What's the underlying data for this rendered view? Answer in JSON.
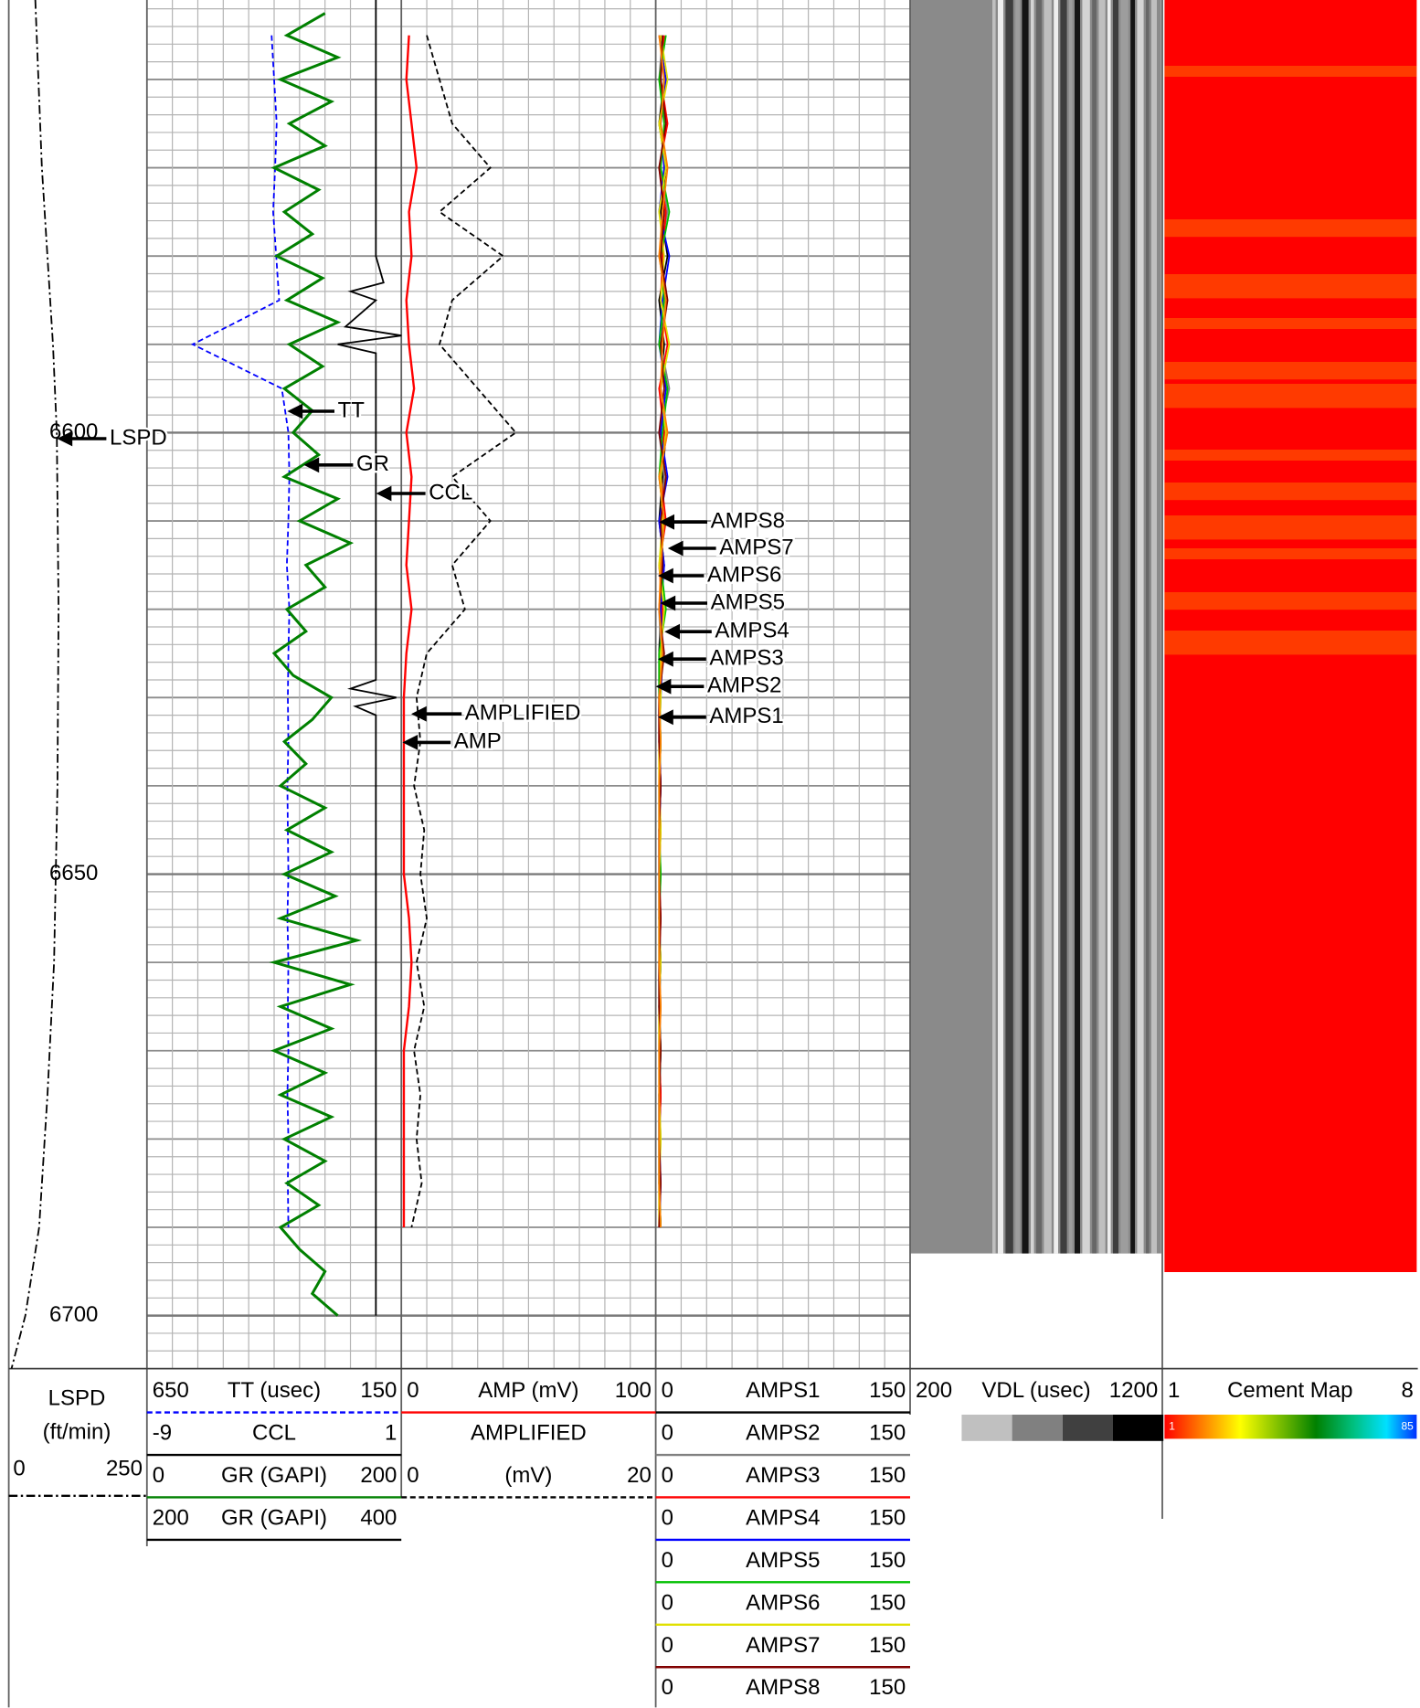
{
  "chart_data": {
    "type": "well-log",
    "ylim": [
      6551,
      6706
    ],
    "yticks": [
      6600,
      6650,
      6700
    ],
    "depth": [
      6555,
      6560,
      6565,
      6570,
      6575,
      6580,
      6585,
      6590,
      6595,
      6600,
      6605,
      6610,
      6615,
      6620,
      6625,
      6630,
      6635,
      6640,
      6645,
      6650,
      6655,
      6660,
      6665,
      6670,
      6675,
      6680,
      6685,
      6690
    ],
    "series": [
      {
        "name": "LSPD",
        "unit": "(ft/min)",
        "color": "#000000",
        "dash": "dashdot",
        "xlim": [
          0,
          250
        ],
        "depth": [
          6551,
          6570,
          6590,
          6600,
          6620,
          6640,
          6660,
          6675,
          6690,
          6700,
          6706
        ],
        "values": [
          48,
          60,
          80,
          87,
          90,
          88,
          82,
          70,
          55,
          30,
          5
        ]
      },
      {
        "name": "TT (usec)",
        "color": "#0000ff",
        "dash": "dashed",
        "xlim": [
          650,
          150
        ],
        "values": [
          405,
          400,
          395,
          398,
          402,
          396,
          390,
          560,
          385,
          372,
          370,
          372,
          375,
          370,
          372,
          373,
          372,
          374,
          373,
          372,
          374,
          372,
          373,
          372,
          374,
          372,
          373,
          372
        ]
      },
      {
        "name": "CCL",
        "color": "#000000",
        "xlim": [
          -9,
          1
        ],
        "depth": [
          6551,
          6580,
          6583,
          6584,
          6585,
          6588,
          6589,
          6590,
          6591,
          6595,
          6628,
          6629,
          6630,
          6631,
          6632,
          6635,
          6700
        ],
        "values": [
          0,
          0,
          0.3,
          -1,
          0,
          -1.2,
          1,
          -1.5,
          0,
          0,
          0,
          -1,
          0.8,
          -0.8,
          0,
          0,
          0
        ]
      },
      {
        "name": "GR (GAPI)",
        "color": "#008000",
        "xlim": [
          0,
          200
        ],
        "wrap_xlim": [
          200,
          400
        ],
        "depth": [
          6552.5,
          6555,
          6557.5,
          6560,
          6562.5,
          6565,
          6567.5,
          6570,
          6572.5,
          6575,
          6577.5,
          6580,
          6582.5,
          6585,
          6587.5,
          6590,
          6592.5,
          6595,
          6597.5,
          6600,
          6602.5,
          6605,
          6607.5,
          6610,
          6612.5,
          6615,
          6617.5,
          6620,
          6622.5,
          6625,
          6627.5,
          6630,
          6632.5,
          6635,
          6637.5,
          6640,
          6642.5,
          6645,
          6647.5,
          6650,
          6652.5,
          6655,
          6657.5,
          6660,
          6662.5,
          6665,
          6667.5,
          6670,
          6672.5,
          6675,
          6677.5,
          6680,
          6682.5,
          6685,
          6687.5,
          6690,
          6692.5,
          6695,
          6697.5,
          6700
        ],
        "values": [
          140,
          110,
          150,
          105,
          145,
          112,
          140,
          100,
          135,
          108,
          130,
          102,
          138,
          110,
          150,
          112,
          138,
          108,
          130,
          115,
          135,
          108,
          150,
          120,
          160,
          125,
          140,
          110,
          125,
          100,
          115,
          145,
          130,
          108,
          125,
          105,
          140,
          110,
          145,
          108,
          148,
          105,
          165,
          100,
          160,
          105,
          145,
          100,
          140,
          105,
          145,
          108,
          140,
          110,
          135,
          105,
          120,
          140,
          130,
          150
        ]
      },
      {
        "name": "AMP (mV)",
        "color": "#ff0000",
        "xlim": [
          0,
          100
        ],
        "values": [
          3,
          2,
          4,
          6,
          3,
          4,
          2,
          3,
          5,
          2,
          4,
          3,
          2,
          4,
          2,
          1,
          1,
          1,
          1,
          1,
          3,
          4,
          3,
          1,
          1,
          1,
          1,
          1
        ]
      },
      {
        "name": "AMPLIFIED",
        "unit": "(mV)",
        "color": "#000000",
        "dash": "dashed",
        "xlim": [
          0,
          20
        ],
        "values": [
          2,
          3,
          4,
          7,
          3,
          8,
          4,
          3,
          6,
          9,
          4,
          7,
          4,
          5,
          2,
          1.2,
          1.5,
          1,
          1.8,
          1.5,
          2,
          1.2,
          1.8,
          1,
          1.5,
          1.2,
          1.6,
          0.8
        ]
      },
      {
        "name": "AMPS1",
        "color": "#000000",
        "xlim": [
          0,
          150
        ],
        "values": [
          3,
          5,
          2,
          6,
          3,
          7,
          2,
          5,
          3,
          6,
          4,
          2,
          5,
          3,
          2,
          2,
          2,
          3,
          2,
          2,
          2,
          3,
          2,
          2,
          3,
          2,
          2,
          3
        ]
      },
      {
        "name": "AMPS2",
        "color": "#808080",
        "xlim": [
          0,
          150
        ],
        "values": [
          4,
          2,
          6,
          3,
          7,
          2,
          6,
          3,
          8,
          2,
          5,
          3,
          4,
          2,
          3,
          2,
          3,
          2,
          2,
          3,
          2,
          2,
          3,
          2,
          2,
          3,
          2,
          2
        ]
      },
      {
        "name": "AMPS3",
        "color": "#ff0000",
        "xlim": [
          0,
          150
        ],
        "values": [
          5,
          3,
          7,
          2,
          6,
          4,
          3,
          7,
          2,
          5,
          3,
          6,
          2,
          4,
          3,
          2,
          2,
          2,
          3,
          2,
          3,
          2,
          2,
          2,
          3,
          2,
          2,
          2
        ]
      },
      {
        "name": "AMPS4",
        "color": "#0000ff",
        "xlim": [
          0,
          150
        ],
        "values": [
          2,
          6,
          3,
          5,
          2,
          8,
          4,
          2,
          6,
          3,
          7,
          2,
          5,
          3,
          4,
          3,
          2,
          3,
          2,
          2,
          2,
          3,
          2,
          3,
          2,
          2,
          3,
          2
        ]
      },
      {
        "name": "AMPS5",
        "color": "#00c000",
        "xlim": [
          0,
          150
        ],
        "values": [
          6,
          2,
          5,
          3,
          8,
          3,
          5,
          2,
          7,
          4,
          2,
          5,
          3,
          6,
          2,
          2,
          3,
          2,
          2,
          3,
          2,
          2,
          2,
          3,
          2,
          2,
          2,
          3
        ]
      },
      {
        "name": "AMPS6",
        "color": "#e0e000",
        "xlim": [
          0,
          150
        ],
        "values": [
          3,
          7,
          2,
          6,
          2,
          5,
          3,
          8,
          3,
          6,
          3,
          4,
          2,
          5,
          3,
          3,
          2,
          2,
          3,
          2,
          2,
          3,
          2,
          2,
          2,
          3,
          2,
          2
        ]
      },
      {
        "name": "AMPS7",
        "color": "#800000",
        "xlim": [
          0,
          150
        ],
        "values": [
          4,
          3,
          6,
          2,
          5,
          3,
          7,
          3,
          5,
          2,
          6,
          3,
          4,
          2,
          5,
          2,
          2,
          3,
          2,
          2,
          3,
          2,
          2,
          3,
          2,
          2,
          3,
          2
        ]
      },
      {
        "name": "AMPS8",
        "color": "#ff8000",
        "xlim": [
          0,
          150
        ],
        "values": [
          2,
          5,
          3,
          7,
          4,
          2,
          6,
          4,
          3,
          7,
          2,
          5,
          3,
          2,
          4,
          2,
          3,
          2,
          2,
          2,
          2,
          2,
          3,
          2,
          2,
          2,
          2,
          3
        ]
      }
    ],
    "vdl": {
      "name": "VDL (usec)",
      "xlim": [
        200,
        1200
      ]
    },
    "cement_map": {
      "name": "Cement Map",
      "xlim": [
        1,
        8
      ],
      "colorbar_ends": [
        1,
        85
      ]
    },
    "annotations": [
      "LSPD",
      "TT",
      "GR",
      "CCL",
      "AMPLIFIED",
      "AMP",
      "AMPS8",
      "AMPS7",
      "AMPS6",
      "AMPS5",
      "AMPS4",
      "AMPS3",
      "AMPS2",
      "AMPS1"
    ]
  }
}
